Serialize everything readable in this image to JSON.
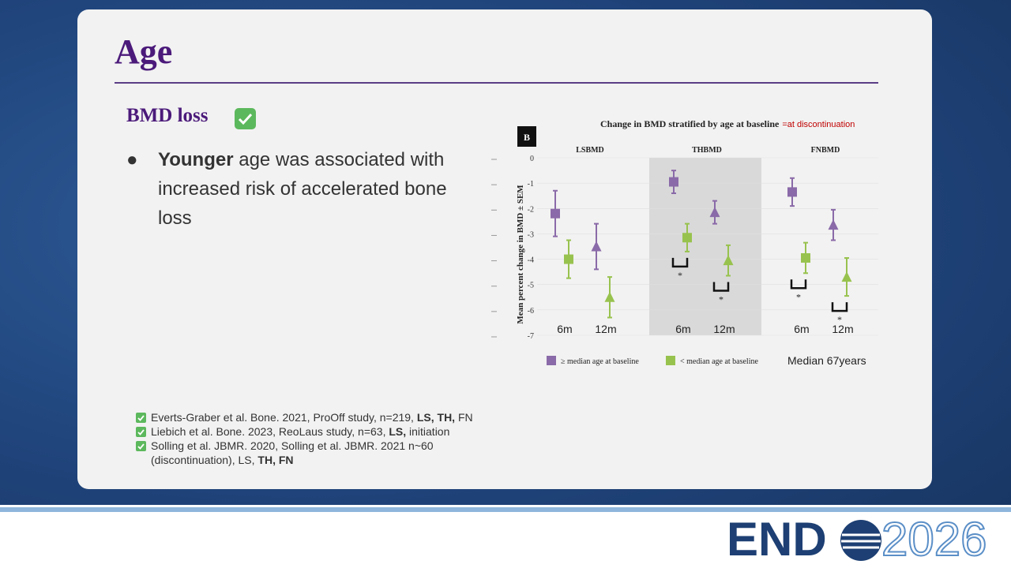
{
  "header": {
    "title": "Age"
  },
  "section": {
    "heading": "BMD loss"
  },
  "bullet": {
    "bold": "Younger",
    "text": " age was associated with increased risk of accelerated bone loss"
  },
  "chart_data": {
    "type": "errorbar",
    "panel_label": "B",
    "title": "Change in BMD stratified by age at baseline",
    "title_note": "=at discontinuation",
    "ylabel": "Mean percent change in BMD ± SEM",
    "groups": [
      "LSBMD",
      "THBMD",
      "FNBMD"
    ],
    "categories": [
      "6m",
      "12m",
      "6m",
      "12m",
      "6m",
      "12m"
    ],
    "markers": [
      "square",
      "triangle",
      "square",
      "triangle",
      "square",
      "triangle"
    ],
    "series": [
      {
        "name": "≥ median age at baseline",
        "color": "#8a6aa8",
        "values": [
          -2.2,
          -3.5,
          -0.95,
          -2.15,
          -1.35,
          -2.65
        ],
        "errors": [
          0.9,
          0.9,
          0.45,
          0.45,
          0.55,
          0.6
        ]
      },
      {
        "name": "< median age at baseline",
        "color": "#98c24e",
        "values": [
          -4.0,
          -5.5,
          -3.15,
          -4.05,
          -3.95,
          -4.7
        ],
        "errors": [
          0.75,
          0.8,
          0.55,
          0.6,
          0.6,
          0.75
        ]
      }
    ],
    "ylim": [
      -7,
      0
    ],
    "yticks": [
      0,
      -1,
      -2,
      -3,
      -4,
      -5,
      -6,
      -7
    ],
    "annotations": [
      "*",
      "*",
      "*",
      "*"
    ],
    "median_note": "Median 67years"
  },
  "references": [
    [
      {
        "text": "Everts-Graber et al. Bone. 2021, ProOff study, n=219, "
      },
      {
        "text": "LS, TH,",
        "bold": true
      },
      {
        "text": " FN"
      }
    ],
    [
      {
        "text": "Liebich et al. Bone. 2023, ReoLaus study, n=63, "
      },
      {
        "text": "LS,",
        "bold": true
      },
      {
        "text": " initiation"
      }
    ],
    [
      {
        "text": "Solling et al. JBMR. 2020, Solling et al. JBMR. 2021 n~60 (discontinuation), LS, "
      },
      {
        "text": "TH, FN",
        "bold": true
      }
    ]
  ],
  "footer": {
    "brand": "END",
    "year": "2026"
  }
}
